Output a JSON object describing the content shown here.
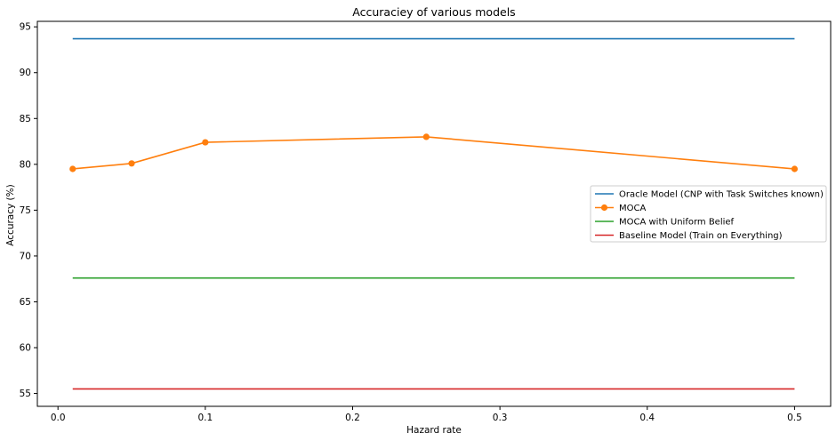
{
  "chart_data": {
    "type": "line",
    "title": "Accuraciey of various models",
    "xlabel": "Hazard rate",
    "ylabel": "Accuracy (%)",
    "xlim": [
      -0.014,
      0.5245
    ],
    "ylim": [
      53.6,
      95.6
    ],
    "xticks": [
      0.0,
      0.1,
      0.2,
      0.3,
      0.4,
      0.5
    ],
    "xtick_labels": [
      "0.0",
      "0.1",
      "0.2",
      "0.3",
      "0.4",
      "0.5"
    ],
    "yticks": [
      55,
      60,
      65,
      70,
      75,
      80,
      85,
      90,
      95
    ],
    "ytick_labels": [
      "55",
      "60",
      "65",
      "70",
      "75",
      "80",
      "85",
      "90",
      "95"
    ],
    "grid": false,
    "legend_position": "center-right",
    "series": [
      {
        "name": "Oracle Model (CNP with Task Switches known)",
        "color": "#1f77b4",
        "marker": "none",
        "x": [
          0.01,
          0.5
        ],
        "y": [
          93.7,
          93.7
        ]
      },
      {
        "name": "MOCA",
        "color": "#ff7f0e",
        "marker": "circle",
        "x": [
          0.01,
          0.05,
          0.1,
          0.25,
          0.5
        ],
        "y": [
          79.5,
          80.1,
          82.4,
          83.0,
          79.5
        ]
      },
      {
        "name": "MOCA with Uniform Belief",
        "color": "#2ca02c",
        "marker": "none",
        "x": [
          0.01,
          0.5
        ],
        "y": [
          67.6,
          67.6
        ]
      },
      {
        "name": "Baseline Model (Train on Everything)",
        "color": "#d62728",
        "marker": "none",
        "x": [
          0.01,
          0.5
        ],
        "y": [
          55.5,
          55.5
        ]
      }
    ]
  }
}
